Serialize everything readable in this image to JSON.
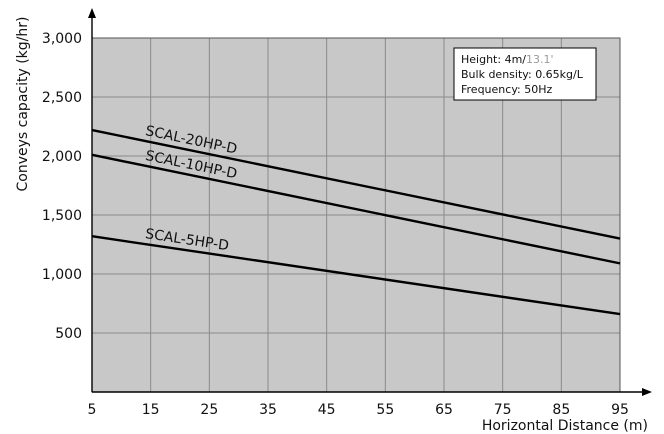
{
  "chart_data": {
    "type": "line",
    "title": "",
    "xlabel": "Horizontal Distance (m)",
    "ylabel": "Conveys capacity (kg/hr)",
    "xlim": [
      5,
      95
    ],
    "ylim": [
      0,
      3000
    ],
    "x_ticks": [
      5,
      15,
      25,
      35,
      45,
      55,
      65,
      75,
      85,
      95
    ],
    "x_tick_labels": [
      "5",
      "15",
      "25",
      "35",
      "45",
      "55",
      "65",
      "75",
      "85",
      "95"
    ],
    "y_ticks": [
      500,
      1000,
      1500,
      2000,
      2500,
      3000
    ],
    "y_tick_labels": [
      "500",
      "1,000",
      "1,500",
      "2,000",
      "2,500",
      "3,000"
    ],
    "grid": true,
    "colors": {
      "plot_background": "#c8c8c8",
      "grid": "#8a8a8a",
      "line": "#000000",
      "info_box_background": "#ffffff"
    },
    "series": [
      {
        "name": "SCAL-20HP-D",
        "x": [
          5,
          95
        ],
        "y": [
          2220,
          1300
        ]
      },
      {
        "name": "SCAL-10HP-D",
        "x": [
          5,
          95
        ],
        "y": [
          2010,
          1090
        ]
      },
      {
        "name": "SCAL-5HP-D",
        "x": [
          5,
          95
        ],
        "y": [
          1320,
          660
        ]
      }
    ],
    "info_box": {
      "placement": "top-right",
      "lines": [
        {
          "label": "Height:",
          "value": "4m/",
          "value_muted": "13.1'"
        },
        {
          "label": "Bulk density:",
          "value": "0.65kg/L",
          "value_muted": ""
        },
        {
          "label": "Frequency:",
          "value": "50Hz",
          "value_muted": ""
        }
      ]
    }
  }
}
